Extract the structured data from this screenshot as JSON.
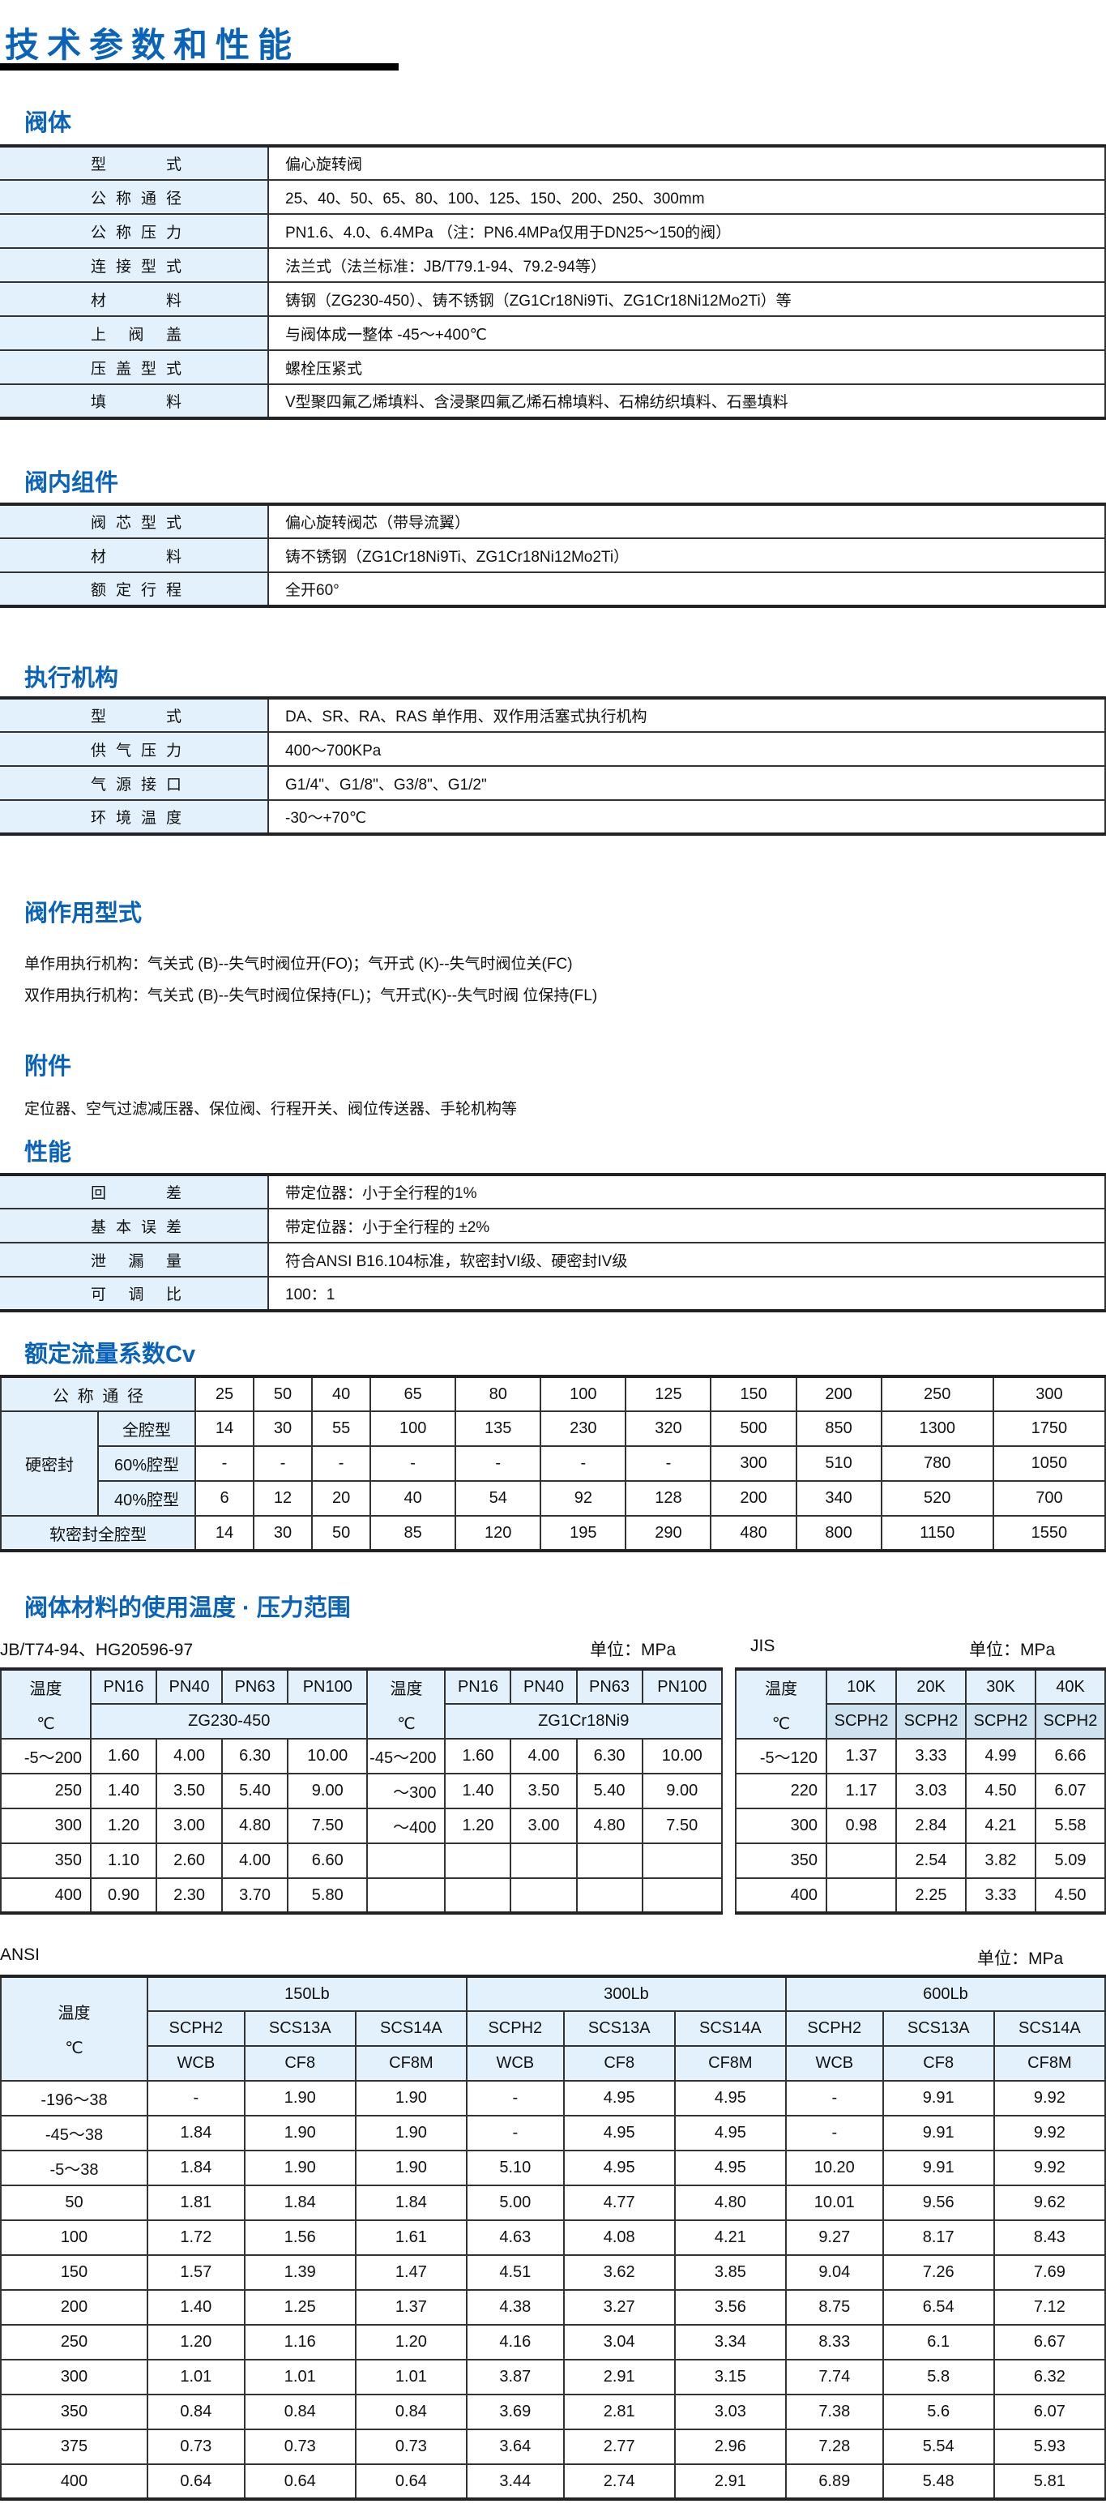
{
  "title": "技术参数和性能",
  "body_section": {
    "title": "阀体",
    "rows": [
      [
        "型式",
        "偏心旋转阀"
      ],
      [
        "公称通径",
        "25、40、50、65、80、100、125、150、200、250、300mm"
      ],
      [
        "公称压力",
        "PN1.6、4.0、6.4MPa （注：PN6.4MPa仅用于DN25～150的阀）"
      ],
      [
        "连接型式",
        "法兰式（法兰标准：JB/T79.1-94、79.2-94等）"
      ],
      [
        "材料",
        "铸钢（ZG230-450）、铸不锈钢（ZG1Cr18Ni9Ti、ZG1Cr18Ni12Mo2Ti）等"
      ],
      [
        "上阀盖",
        "与阀体成一整体 -45～+400℃"
      ],
      [
        "压盖型式",
        "螺栓压紧式"
      ],
      [
        "填料",
        "V型聚四氟乙烯填料、含浸聚四氟乙烯石棉填料、石棉纺织填料、石墨填料"
      ]
    ]
  },
  "trim_section": {
    "title": "阀内组件",
    "rows": [
      [
        "阀芯型式",
        "偏心旋转阀芯（带导流翼）"
      ],
      [
        "材料",
        "铸不锈钢（ZG1Cr18Ni9Ti、ZG1Cr18Ni12Mo2Ti）"
      ],
      [
        "额定行程",
        "全开60°"
      ]
    ]
  },
  "actuator_section": {
    "title": "执行机构",
    "rows": [
      [
        "型式",
        "DA、SR、RA、RAS 单作用、双作用活塞式执行机构"
      ],
      [
        "供气压力",
        "400～700KPa"
      ],
      [
        "气源接口",
        "G1/4\"、G1/8\"、G3/8\"、G1/2\""
      ],
      [
        "环境温度",
        "-30～+70℃"
      ]
    ]
  },
  "action": {
    "title": "阀作用型式",
    "lines": [
      "单作用执行机构：气关式 (B)--失气时阀位开(FO)；气开式 (K)--失气时阀位关(FC)",
      "双作用执行机构：气关式 (B)--失气时阀位保持(FL)；气开式(K)--失气时阀 位保持(FL)"
    ]
  },
  "accessories": {
    "title": "附件",
    "text": "定位器、空气过滤减压器、保位阀、行程开关、阀位传送器、手轮机构等"
  },
  "performance": {
    "title": "性能",
    "rows": [
      [
        "回差",
        "带定位器：小于全行程的1%"
      ],
      [
        "基本误差",
        "带定位器：小于全行程的 ±2%"
      ],
      [
        "泄漏量",
        "符合ANSI  B16.104标准，软密封VI级、硬密封IV级"
      ],
      [
        "可调比",
        "100：1"
      ]
    ]
  },
  "cv": {
    "title": "额定流量系数Cv",
    "dn_label": "公称通径",
    "hard_label": "硬密封",
    "soft_label": "软密封全腔型",
    "dn": [
      "25",
      "50",
      "40",
      "65",
      "80",
      "100",
      "125",
      "150",
      "200",
      "250",
      "300"
    ],
    "hard": [
      {
        "label": "全腔型",
        "values": [
          "14",
          "30",
          "55",
          "100",
          "135",
          "230",
          "320",
          "500",
          "850",
          "1300",
          "1750"
        ]
      },
      {
        "label": "60%腔型",
        "values": [
          "-",
          "-",
          "-",
          "-",
          "-",
          "-",
          "-",
          "300",
          "510",
          "780",
          "1050"
        ]
      },
      {
        "label": "40%腔型",
        "values": [
          "6",
          "12",
          "20",
          "40",
          "54",
          "92",
          "128",
          "200",
          "340",
          "520",
          "700"
        ]
      }
    ],
    "soft": [
      "14",
      "30",
      "50",
      "85",
      "120",
      "195",
      "290",
      "480",
      "800",
      "1150",
      "1550"
    ]
  },
  "temp": {
    "title": "阀体材料的使用温度 · 压力范围",
    "jb": {
      "label": "JB/T74-94、HG20596-97",
      "unit": "单位：MPa",
      "temp_label": "温度",
      "temp_unit": "℃",
      "pn": [
        "PN16",
        "PN40",
        "PN63",
        "PN100"
      ],
      "mat1": "ZG230-450",
      "mat2": "ZG1Cr18Ni9",
      "rows": [
        [
          "-5～200",
          "1.60",
          "4.00",
          "6.30",
          "10.00",
          "-45～200",
          "1.60",
          "4.00",
          "6.30",
          "10.00"
        ],
        [
          "250",
          "1.40",
          "3.50",
          "5.40",
          "9.00",
          "～300",
          "1.40",
          "3.50",
          "5.40",
          "9.00"
        ],
        [
          "300",
          "1.20",
          "3.00",
          "4.80",
          "7.50",
          "～400",
          "1.20",
          "3.00",
          "4.80",
          "7.50"
        ],
        [
          "350",
          "1.10",
          "2.60",
          "4.00",
          "6.60",
          "",
          "",
          "",
          "",
          ""
        ],
        [
          "400",
          "0.90",
          "2.30",
          "3.70",
          "5.80",
          "",
          "",
          "",
          "",
          ""
        ]
      ]
    },
    "jis": {
      "label": "JIS",
      "unit": "单位：MPa",
      "temp_label": "温度",
      "temp_unit": "℃",
      "classes": [
        "10K",
        "20K",
        "30K",
        "40K"
      ],
      "mats": [
        "SCPH2",
        "SCPH2",
        "SCPH2",
        "SCPH2"
      ],
      "rows": [
        [
          "-5～120",
          "1.37",
          "3.33",
          "4.99",
          "6.66"
        ],
        [
          "220",
          "1.17",
          "3.03",
          "4.50",
          "6.07"
        ],
        [
          "300",
          "0.98",
          "2.84",
          "4.21",
          "5.58"
        ],
        [
          "350",
          "",
          "2.54",
          "3.82",
          "5.09"
        ],
        [
          "400",
          "",
          "2.25",
          "3.33",
          "4.50"
        ]
      ]
    },
    "ansi": {
      "label": "ANSI",
      "unit": "单位：MPa",
      "temp_label": "温度",
      "temp_unit": "℃",
      "classes": [
        "150Lb",
        "300Lb",
        "600Lb"
      ],
      "mats_a": [
        "SCPH2",
        "SCS13A",
        "SCS14A"
      ],
      "mats_b": [
        "WCB",
        "CF8",
        "CF8M"
      ],
      "rows": [
        [
          "-196～38",
          "-",
          "1.90",
          "1.90",
          "-",
          "4.95",
          "4.95",
          "-",
          "9.91",
          "9.92"
        ],
        [
          "-45～38",
          "1.84",
          "1.90",
          "1.90",
          "-",
          "4.95",
          "4.95",
          "-",
          "9.91",
          "9.92"
        ],
        [
          "-5～38",
          "1.84",
          "1.90",
          "1.90",
          "5.10",
          "4.95",
          "4.95",
          "10.20",
          "9.91",
          "9.92"
        ],
        [
          "50",
          "1.81",
          "1.84",
          "1.84",
          "5.00",
          "4.77",
          "4.80",
          "10.01",
          "9.56",
          "9.62"
        ],
        [
          "100",
          "1.72",
          "1.56",
          "1.61",
          "4.63",
          "4.08",
          "4.21",
          "9.27",
          "8.17",
          "8.43"
        ],
        [
          "150",
          "1.57",
          "1.39",
          "1.47",
          "4.51",
          "3.62",
          "3.85",
          "9.04",
          "7.26",
          "7.69"
        ],
        [
          "200",
          "1.40",
          "1.25",
          "1.37",
          "4.38",
          "3.27",
          "3.56",
          "8.75",
          "6.54",
          "7.12"
        ],
        [
          "250",
          "1.20",
          "1.16",
          "1.20",
          "4.16",
          "3.04",
          "3.34",
          "8.33",
          "6.1",
          "6.67"
        ],
        [
          "300",
          "1.01",
          "1.01",
          "1.01",
          "3.87",
          "2.91",
          "3.15",
          "7.74",
          "5.8",
          "6.32"
        ],
        [
          "350",
          "0.84",
          "0.84",
          "0.84",
          "3.69",
          "2.81",
          "3.03",
          "7.38",
          "5.6",
          "6.07"
        ],
        [
          "375",
          "0.73",
          "0.73",
          "0.73",
          "3.64",
          "2.77",
          "2.96",
          "7.28",
          "5.54",
          "5.93"
        ],
        [
          "400",
          "0.64",
          "0.64",
          "0.64",
          "3.44",
          "2.74",
          "2.91",
          "6.89",
          "5.48",
          "5.81"
        ]
      ]
    }
  },
  "colors": {
    "heading": "#0a63b8",
    "label_bg": "#e2f1fb"
  }
}
